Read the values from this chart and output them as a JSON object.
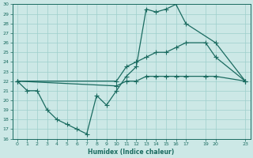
{
  "xlabel": "Humidex (Indice chaleur)",
  "bg_color": "#cce8e6",
  "grid_color": "#9ecfcc",
  "line_color": "#1a6b60",
  "ylim": [
    16,
    30
  ],
  "xlim": [
    -0.5,
    23.5
  ],
  "yticks": [
    16,
    17,
    18,
    19,
    20,
    21,
    22,
    23,
    24,
    25,
    26,
    27,
    28,
    29,
    30
  ],
  "xticks": [
    0,
    1,
    2,
    3,
    4,
    5,
    6,
    7,
    8,
    9,
    10,
    11,
    12,
    13,
    14,
    15,
    16,
    17,
    19,
    20,
    23
  ],
  "xtick_labels": [
    "0",
    "1",
    "2",
    "3",
    "4",
    "5",
    "6",
    "7",
    "8",
    "9",
    "10",
    "11",
    "12",
    "13",
    "14",
    "15",
    "16",
    "17",
    "19",
    "20",
    "23"
  ],
  "line1_x": [
    0,
    1,
    2,
    3,
    4,
    5,
    6,
    7,
    8,
    9,
    10,
    11,
    12,
    13,
    14,
    15,
    16,
    17,
    20,
    23
  ],
  "line1_y": [
    22,
    21,
    21,
    19,
    18,
    17.5,
    17,
    16.5,
    20.5,
    19.5,
    21,
    22.5,
    23.5,
    29.5,
    29.2,
    29.5,
    30,
    28,
    26,
    22
  ],
  "line2_x": [
    0,
    10,
    11,
    12,
    13,
    14,
    15,
    16,
    17,
    19,
    20,
    23
  ],
  "line2_y": [
    22,
    22,
    23.5,
    24,
    24.5,
    25,
    25,
    25.5,
    26,
    26,
    24.5,
    22
  ],
  "line3_x": [
    0,
    10,
    11,
    12,
    13,
    14,
    15,
    16,
    17,
    19,
    20,
    23
  ],
  "line3_y": [
    22,
    21.5,
    22,
    22,
    22.5,
    22.5,
    22.5,
    22.5,
    22.5,
    22.5,
    22.5,
    22
  ]
}
